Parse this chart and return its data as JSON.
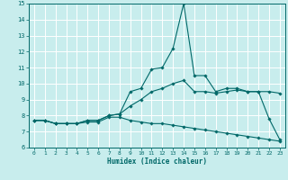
{
  "title": "",
  "xlabel": "Humidex (Indice chaleur)",
  "xlim": [
    -0.5,
    23.5
  ],
  "ylim": [
    6,
    15
  ],
  "xticks": [
    0,
    1,
    2,
    3,
    4,
    5,
    6,
    7,
    8,
    9,
    10,
    11,
    12,
    13,
    14,
    15,
    16,
    17,
    18,
    19,
    20,
    21,
    22,
    23
  ],
  "yticks": [
    6,
    7,
    8,
    9,
    10,
    11,
    12,
    13,
    14,
    15
  ],
  "bg_color": "#c8eded",
  "grid_color": "#ffffff",
  "line_color": "#006868",
  "series": [
    [
      7.7,
      7.7,
      7.5,
      7.5,
      7.5,
      7.7,
      7.7,
      8.0,
      8.1,
      9.5,
      9.7,
      10.9,
      11.0,
      12.2,
      15.0,
      10.5,
      10.5,
      9.5,
      9.7,
      9.7,
      9.5,
      9.5,
      7.8,
      6.5
    ],
    [
      7.7,
      7.7,
      7.5,
      7.5,
      7.5,
      7.7,
      7.7,
      8.0,
      8.1,
      8.6,
      9.0,
      9.5,
      9.7,
      10.0,
      10.2,
      9.5,
      9.5,
      9.4,
      9.5,
      9.6,
      9.5,
      9.5,
      9.5,
      9.4
    ],
    [
      7.7,
      7.7,
      7.5,
      7.5,
      7.5,
      7.6,
      7.6,
      7.9,
      7.9,
      7.7,
      7.6,
      7.5,
      7.5,
      7.4,
      7.3,
      7.2,
      7.1,
      7.0,
      6.9,
      6.8,
      6.7,
      6.6,
      6.5,
      6.4
    ]
  ]
}
